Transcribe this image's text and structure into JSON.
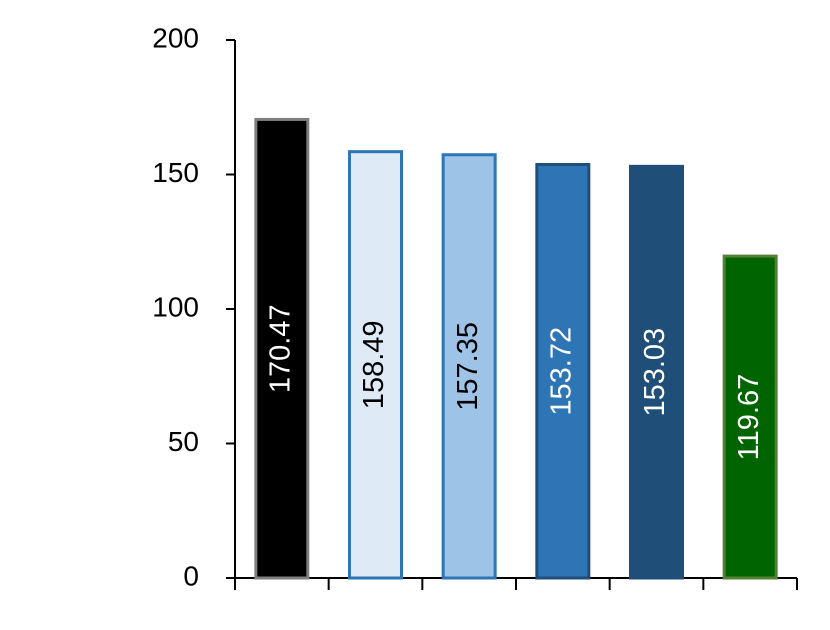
{
  "chart_data": {
    "type": "bar",
    "categories": [
      null,
      null,
      null,
      null,
      null,
      null
    ],
    "values": [
      170.47,
      158.49,
      157.35,
      153.72,
      153.03,
      119.67
    ],
    "colors": [
      "#000000",
      "#deebf7",
      "#9dc3e6",
      "#2e75b6",
      "#1f4e79",
      "#006400"
    ],
    "edge_colors": [
      "#7f7f7f",
      "#2e75b6",
      "#2e75b6",
      "#1f4e79",
      "#1f4e79",
      "#548235"
    ],
    "ylim": [
      0,
      200
    ],
    "yticks": [
      0,
      50,
      100,
      150,
      200
    ],
    "grid": false
  }
}
